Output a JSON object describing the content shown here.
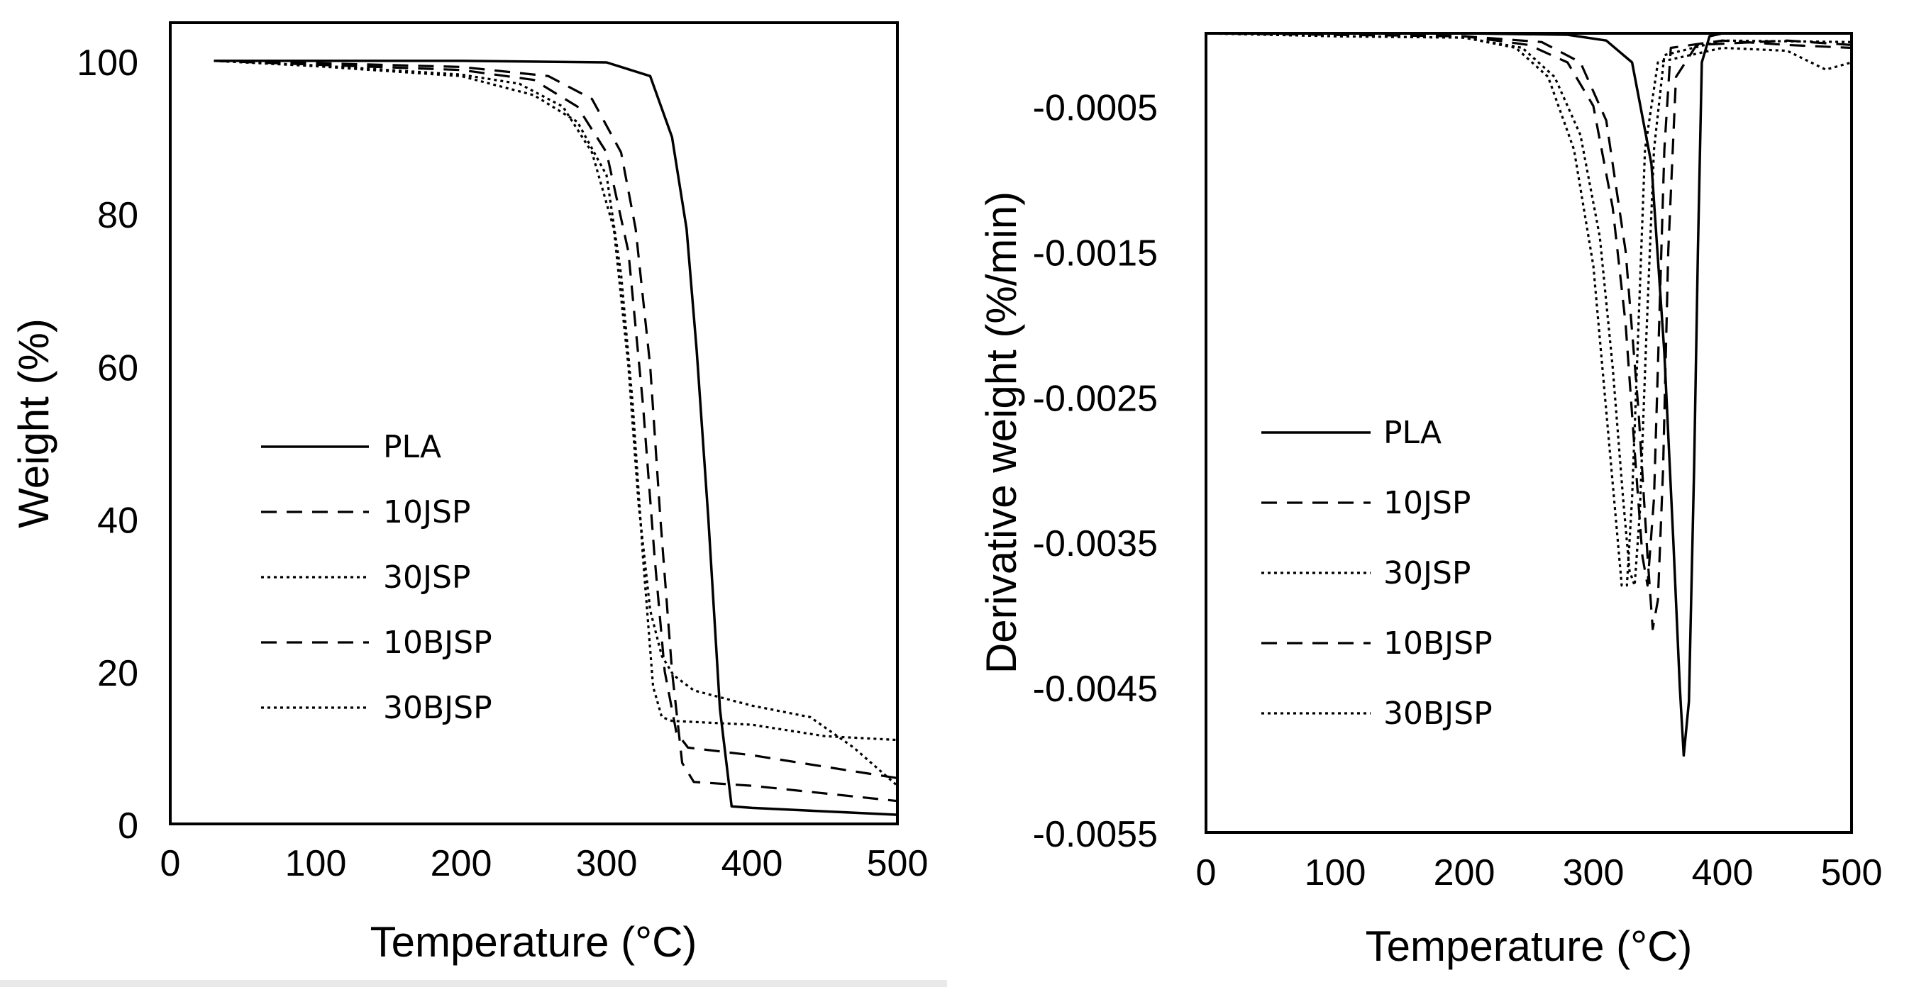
{
  "figure_domain": "Thermogravimetric analysis",
  "chart_data": [
    {
      "type": "line",
      "title": "",
      "xlabel": "Temperature (°C)",
      "ylabel": "Weight (%)",
      "xlim": [
        0,
        500
      ],
      "ylim": [
        0,
        105
      ],
      "xticks": [
        0,
        100,
        200,
        300,
        400,
        500
      ],
      "yticks": [
        0,
        20,
        40,
        60,
        80,
        100
      ],
      "xtick_labels": [
        "0",
        "100",
        "200",
        "300",
        "400",
        "500"
      ],
      "ytick_labels": [
        "0",
        "20",
        "40",
        "60",
        "80",
        "100"
      ],
      "legend_position": "left",
      "grid": false,
      "series": [
        {
          "name": "PLA",
          "style": "solid",
          "x": [
            30,
            100,
            200,
            300,
            330,
            345,
            355,
            362,
            370,
            378,
            386,
            400,
            500
          ],
          "y": [
            100,
            100,
            100,
            99.8,
            98,
            90,
            78,
            62,
            40,
            15,
            2.3,
            2.1,
            1.2
          ]
        },
        {
          "name": "10JSP",
          "style": "dashed",
          "x": [
            30,
            100,
            200,
            260,
            290,
            310,
            320,
            330,
            337,
            345,
            352,
            360,
            400,
            500
          ],
          "y": [
            100,
            99.7,
            99.2,
            98,
            95,
            88,
            78,
            60,
            40,
            20,
            8,
            5.5,
            5,
            3
          ]
        },
        {
          "name": "30JSP",
          "style": "dotted",
          "x": [
            30,
            100,
            200,
            250,
            280,
            300,
            310,
            318,
            325,
            332,
            338,
            345,
            400,
            450,
            500
          ],
          "y": [
            100,
            99.3,
            98,
            95.5,
            92,
            85,
            72,
            55,
            35,
            18,
            14,
            13.5,
            13,
            11.5,
            11
          ]
        },
        {
          "name": "10BJSP",
          "style": "dashed",
          "x": [
            30,
            100,
            200,
            250,
            280,
            300,
            315,
            325,
            333,
            340,
            348,
            356,
            400,
            450,
            500
          ],
          "y": [
            100,
            99.5,
            98.8,
            97.5,
            94,
            88,
            75,
            55,
            35,
            20,
            12,
            10,
            9,
            7.5,
            6
          ]
        },
        {
          "name": "30BJSP",
          "style": "dotted",
          "x": [
            30,
            100,
            200,
            240,
            270,
            290,
            305,
            315,
            322,
            330,
            338,
            346,
            360,
            400,
            440,
            470,
            500
          ],
          "y": [
            100,
            99.4,
            98.2,
            97,
            94,
            88,
            78,
            60,
            42,
            28,
            22,
            19.5,
            17.5,
            15.5,
            14,
            10,
            5
          ]
        }
      ]
    },
    {
      "type": "line",
      "title": "",
      "xlabel": "Temperature (°C)",
      "ylabel": "Derivative weight (%/min)",
      "xlim": [
        0,
        500
      ],
      "ylim": [
        -0.0055,
        0
      ],
      "xticks": [
        0,
        100,
        200,
        300,
        400,
        500
      ],
      "yticks": [
        -0.0005,
        -0.0015,
        -0.0025,
        -0.0035,
        -0.0045,
        -0.0055
      ],
      "xtick_labels": [
        "0",
        "100",
        "200",
        "300",
        "400",
        "500"
      ],
      "ytick_labels": [
        "-0.0005",
        "-0.0015",
        "-0.0025",
        "-0.0035",
        "-0.0045",
        "-0.0055"
      ],
      "legend_position": "left",
      "grid": false,
      "series": [
        {
          "name": "PLA",
          "style": "solid",
          "x": [
            0,
            100,
            200,
            280,
            310,
            330,
            345,
            355,
            362,
            367,
            370,
            374,
            378,
            381,
            384,
            390,
            400,
            500
          ],
          "y": [
            0,
            0,
            0,
            -1e-05,
            -5e-05,
            -0.0002,
            -0.0009,
            -0.0022,
            -0.0035,
            -0.0045,
            -0.00497,
            -0.0046,
            -0.003,
            -0.0015,
            -0.0002,
            -2e-05,
            0,
            0
          ]
        },
        {
          "name": "10JSP",
          "style": "dashed",
          "x": [
            0,
            100,
            200,
            250,
            280,
            300,
            315,
            325,
            333,
            338,
            342,
            347,
            351,
            355,
            360,
            400,
            450,
            500
          ],
          "y": [
            0,
            -1e-05,
            -2e-05,
            -8e-05,
            -0.0002,
            -0.0005,
            -0.0012,
            -0.002,
            -0.003,
            -0.0036,
            -0.0038,
            -0.0032,
            -0.002,
            -0.0008,
            -0.0001,
            -5e-05,
            -8e-05,
            -0.0001
          ]
        },
        {
          "name": "30JSP",
          "style": "dotted",
          "x": [
            0,
            100,
            200,
            240,
            265,
            285,
            300,
            310,
            318,
            322,
            326,
            330,
            335,
            340,
            350,
            400,
            450,
            480,
            500
          ],
          "y": [
            0,
            -2e-05,
            -3e-05,
            -0.0001,
            -0.0003,
            -0.0008,
            -0.0016,
            -0.0026,
            -0.0034,
            -0.0038,
            -0.0038,
            -0.0032,
            -0.002,
            -0.0008,
            -0.0002,
            -0.0001,
            -0.00012,
            -0.00025,
            -0.0002
          ]
        },
        {
          "name": "10BJSP",
          "style": "dashed",
          "x": [
            0,
            100,
            200,
            260,
            290,
            310,
            325,
            335,
            342,
            346,
            350,
            354,
            358,
            364,
            380,
            450,
            500
          ],
          "y": [
            0,
            -1e-05,
            -2e-05,
            -6e-05,
            -0.0002,
            -0.0006,
            -0.0015,
            -0.0026,
            -0.0036,
            -0.0041,
            -0.0039,
            -0.003,
            -0.0015,
            -0.0003,
            -8e-05,
            -5e-05,
            -8e-05
          ]
        },
        {
          "name": "30BJSP",
          "style": "dotted",
          "x": [
            0,
            100,
            200,
            245,
            270,
            290,
            305,
            315,
            323,
            328,
            332,
            336,
            341,
            347,
            355,
            400,
            500
          ],
          "y": [
            0,
            -2e-05,
            -3e-05,
            -0.0001,
            -0.0003,
            -0.0007,
            -0.0014,
            -0.0023,
            -0.0032,
            -0.0037,
            -0.0038,
            -0.0033,
            -0.0021,
            -0.0008,
            -0.00015,
            -5e-05,
            -6e-05
          ]
        }
      ]
    }
  ]
}
